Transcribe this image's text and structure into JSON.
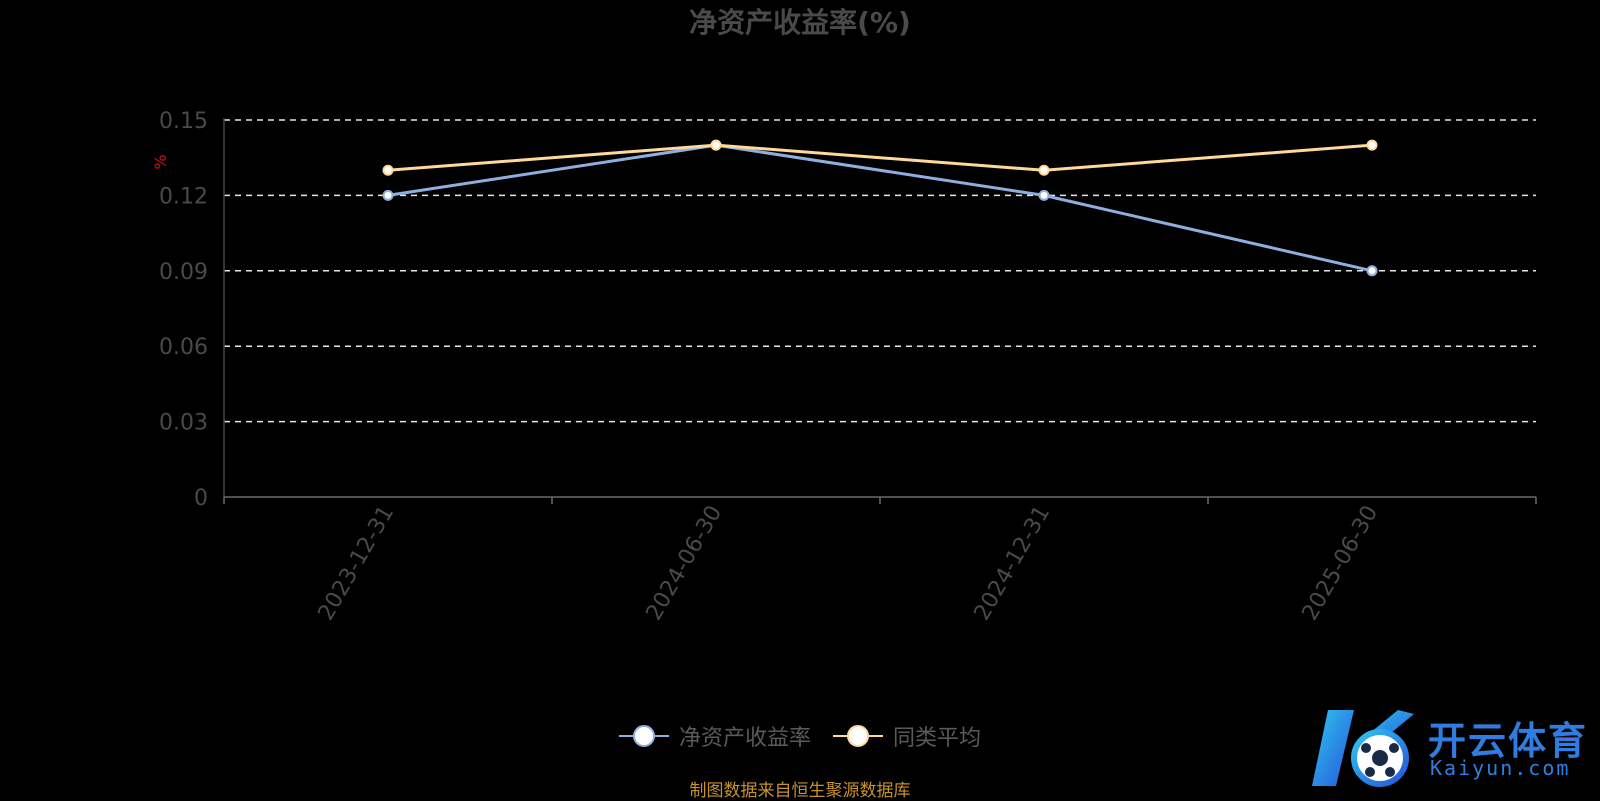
{
  "chart_data": {
    "type": "line",
    "title": "净资产收益率(%)",
    "ylabel": "%",
    "xlabel": "",
    "categories": [
      "2023-12-31",
      "2024-06-30",
      "2024-12-31",
      "2025-06-30"
    ],
    "yticks": [
      "0",
      "0.03",
      "0.06",
      "0.09",
      "0.12",
      "0.15"
    ],
    "ylim": [
      0,
      0.15
    ],
    "grid": true,
    "legend_position": "bottom",
    "series": [
      {
        "name": "净资产收益率",
        "values": [
          0.12,
          0.14,
          0.12,
          0.09
        ],
        "color": "#8eaee0"
      },
      {
        "name": "同类平均",
        "values": [
          0.13,
          0.14,
          0.13,
          0.14
        ],
        "color": "#ffd89a"
      }
    ]
  },
  "source_note": "制图数据来自恒生聚源数据库",
  "watermark": {
    "brand": "开云体育",
    "domain": "Kaiyun.com",
    "accent": "#2f7de1"
  }
}
